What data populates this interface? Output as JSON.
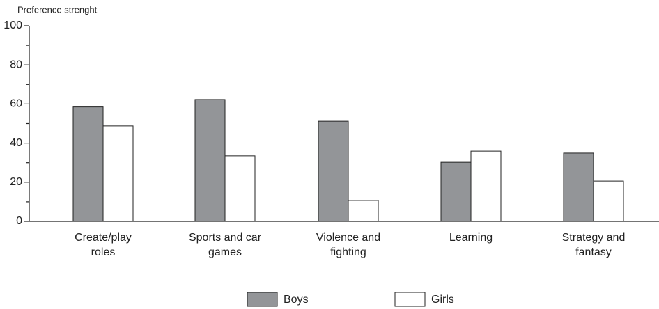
{
  "chart_data": {
    "type": "bar",
    "y_label": "Preference strenght",
    "categories": [
      [
        "Create/play",
        "roles"
      ],
      [
        "Sports and car",
        "games"
      ],
      [
        "Violence and",
        "fighting"
      ],
      [
        "Learning"
      ],
      [
        "Strategy and",
        "fantasy"
      ]
    ],
    "series": [
      {
        "name": "Boys",
        "color": "#939598",
        "values": [
          58.5,
          62.3,
          51.2,
          30.2,
          34.9
        ]
      },
      {
        "name": "Girls",
        "color": "#ffffff",
        "values": [
          48.8,
          33.5,
          10.7,
          35.9,
          20.6
        ]
      }
    ],
    "ylim": [
      0,
      100
    ],
    "yticks": [
      0,
      20,
      40,
      60,
      80,
      100
    ],
    "yticks_minor": [
      10,
      30,
      50,
      70,
      90
    ],
    "grid": false
  }
}
